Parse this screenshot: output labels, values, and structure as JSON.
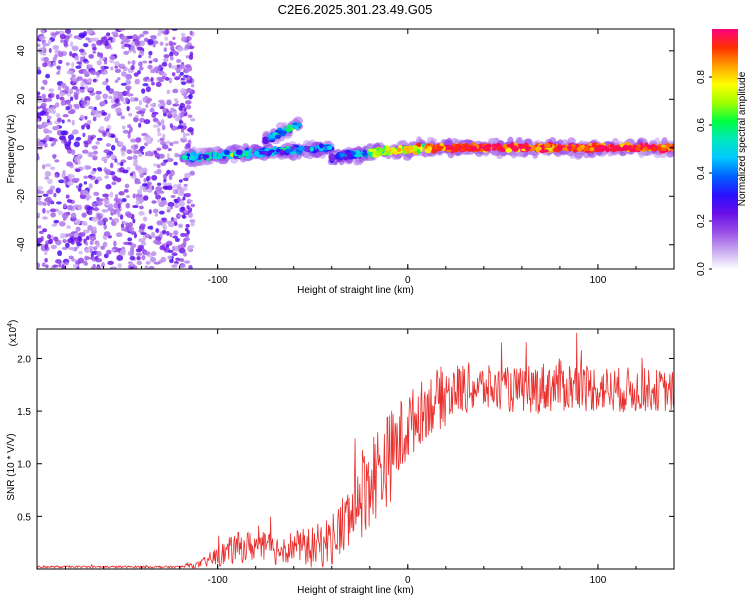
{
  "title": "C2E6.2025.301.23.49.G05",
  "chart_data": [
    {
      "type": "heatmap",
      "id": "spectrogram",
      "xlabel": "Height of straight line (km)",
      "ylabel": "Frequency (Hz)",
      "xlim": [
        -195,
        140
      ],
      "ylim": [
        -50,
        49
      ],
      "xticks": [
        -100,
        0,
        100
      ],
      "xtick_labels": [
        "-100",
        "0",
        "100"
      ],
      "yticks": [
        -40,
        -20,
        0,
        20,
        40
      ],
      "ytick_labels": [
        "-40",
        "-20",
        "0",
        "20",
        "40"
      ],
      "noise_region_km": [
        -195,
        -113
      ],
      "line_segments": [
        {
          "x": [
            -118,
            -80
          ],
          "y": [
            -4,
            -2
          ],
          "amplitude": 0.45
        },
        {
          "x": [
            -80,
            -40
          ],
          "y": [
            -2,
            0
          ],
          "amplitude": 0.4
        },
        {
          "x": [
            -40,
            -20
          ],
          "y": [
            -4,
            -2
          ],
          "amplitude": 0.35
        },
        {
          "x": [
            -20,
            10
          ],
          "y": [
            -2,
            0
          ],
          "amplitude": 0.75
        },
        {
          "x": [
            10,
            140
          ],
          "y": [
            0,
            0
          ],
          "amplitude": 0.95
        }
      ],
      "branch": {
        "x": [
          -75,
          -57
        ],
        "y": [
          3,
          10
        ],
        "amplitude": 0.45
      },
      "colorbar": {
        "label": "Normalized spectral amplitude",
        "range": [
          0,
          1
        ],
        "ticks": [
          0,
          0.2,
          0.4,
          0.6,
          0.8
        ],
        "tick_labels": [
          "0.0",
          "0.2",
          "0.4",
          "0.6",
          "0.8"
        ],
        "colors": [
          "#ffffff",
          "#c8a8f0",
          "#9a4fe8",
          "#6a10e8",
          "#2a10ff",
          "#0060ff",
          "#00c8ff",
          "#00e8c0",
          "#00ff40",
          "#a0ff00",
          "#ffff00",
          "#ffa000",
          "#ff3000",
          "#ff0080"
        ]
      }
    },
    {
      "type": "line",
      "id": "snr",
      "xlabel": "Height of straight line (km)",
      "ylabel": "SNR (10 * V/V)",
      "y_multiplier": "(x10",
      "y_multiplier_exp": "4",
      "y_multiplier_close": ")",
      "xlim": [
        -195,
        140
      ],
      "ylim": [
        0,
        2.28
      ],
      "xticks": [
        -100,
        0,
        100
      ],
      "xtick_labels": [
        "-100",
        "0",
        "100"
      ],
      "yticks": [
        0.5,
        1.0,
        1.5,
        2.0
      ],
      "ytick_labels": [
        "0.5",
        "1.0",
        "1.5",
        "2.0"
      ],
      "color": "#e8302e",
      "series": [
        {
          "name": "SNR",
          "x": [
            -195,
            -170,
            -140,
            -120,
            -110,
            -100,
            -90,
            -80,
            -70,
            -60,
            -50,
            -40,
            -30,
            -25,
            -20,
            -15,
            -10,
            -5,
            0,
            5,
            10,
            15,
            20,
            25,
            30,
            40,
            50,
            60,
            70,
            80,
            90,
            100,
            110,
            120,
            130,
            140
          ],
          "y": [
            0.02,
            0.02,
            0.02,
            0.02,
            0.04,
            0.12,
            0.2,
            0.22,
            0.18,
            0.22,
            0.2,
            0.28,
            0.5,
            0.7,
            0.85,
            0.95,
            1.05,
            1.2,
            1.35,
            1.45,
            1.55,
            1.6,
            1.65,
            1.7,
            1.72,
            1.72,
            1.7,
            1.7,
            1.72,
            1.75,
            1.72,
            1.72,
            1.7,
            1.7,
            1.7,
            1.68
          ],
          "spread": [
            0.01,
            0.01,
            0.01,
            0.01,
            0.03,
            0.1,
            0.15,
            0.15,
            0.15,
            0.15,
            0.2,
            0.25,
            0.35,
            0.45,
            0.45,
            0.45,
            0.45,
            0.4,
            0.35,
            0.3,
            0.3,
            0.3,
            0.3,
            0.25,
            0.25,
            0.22,
            0.22,
            0.22,
            0.25,
            0.25,
            0.25,
            0.22,
            0.22,
            0.22,
            0.2,
            0.2
          ]
        }
      ]
    }
  ]
}
